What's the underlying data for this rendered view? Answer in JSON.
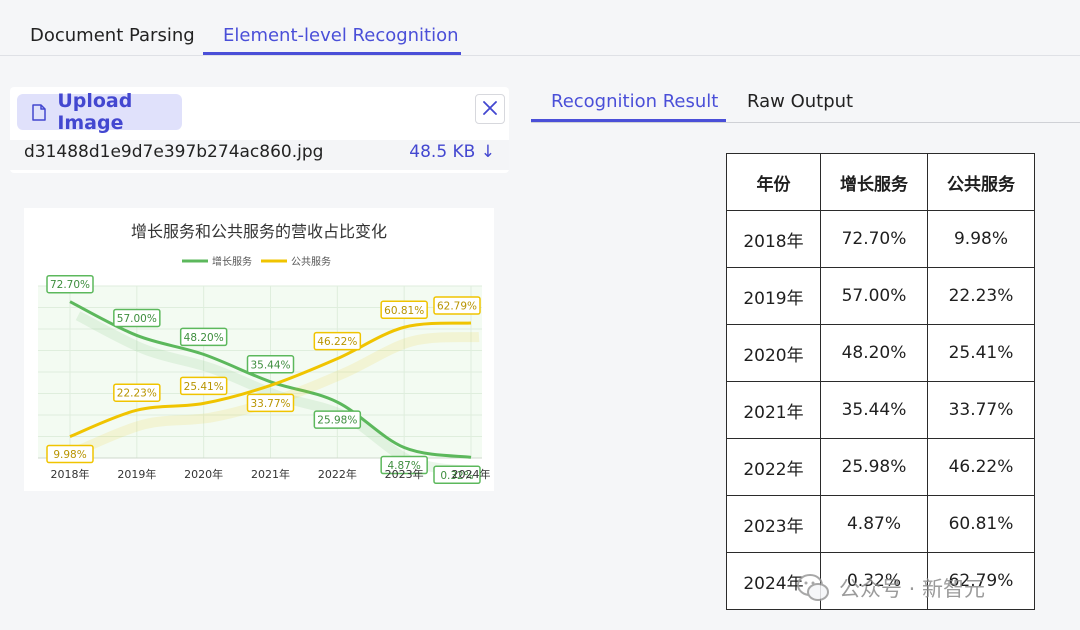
{
  "top_tabs": [
    "Document Parsing",
    "Element-level Recognition"
  ],
  "upload": {
    "button_label": "Upload Image",
    "file_name": "d31488d1e9d7e397b274ac860.jpg",
    "file_size": "48.5 KB ↓"
  },
  "right_tabs": [
    "Recognition Result",
    "Raw Output"
  ],
  "chart_data": {
    "type": "line",
    "title": "增长服务和公共服务的营收占比变化",
    "categories": [
      "2018年",
      "2019年",
      "2020年",
      "2021年",
      "2022年",
      "2023年",
      "2024年"
    ],
    "series": [
      {
        "name": "增长服务",
        "values": [
          72.7,
          57.0,
          48.2,
          35.44,
          25.98,
          4.87,
          0.32
        ],
        "labels": [
          "72.70%",
          "57.00%",
          "48.20%",
          "35.44%",
          "25.98%",
          "4.87%",
          "0.32%"
        ]
      },
      {
        "name": "公共服务",
        "values": [
          9.98,
          22.23,
          25.41,
          33.77,
          46.22,
          60.81,
          62.79
        ],
        "labels": [
          "9.98%",
          "22.23%",
          "25.41%",
          "33.77%",
          "46.22%",
          "60.81%",
          "62.79%"
        ]
      }
    ],
    "ylim": [
      0,
      80
    ],
    "grid": true,
    "legend": "top-center",
    "colors": [
      "#5cb85c",
      "#f0c400"
    ]
  },
  "table": {
    "headers": [
      "年份",
      "增长服务",
      "公共服务"
    ],
    "rows": [
      [
        "2018年",
        "72.70%",
        "9.98%"
      ],
      [
        "2019年",
        "57.00%",
        "22.23%"
      ],
      [
        "2020年",
        "48.20%",
        "25.41%"
      ],
      [
        "2021年",
        "35.44%",
        "33.77%"
      ],
      [
        "2022年",
        "25.98%",
        "46.22%"
      ],
      [
        "2023年",
        "4.87%",
        "60.81%"
      ],
      [
        "2024年",
        "0.32%",
        "62.79%"
      ]
    ]
  },
  "watermark": "公众号 · 新智元",
  "colors": {
    "accent": "#4a4fd8",
    "upload_bg": "#e0e1fb"
  }
}
